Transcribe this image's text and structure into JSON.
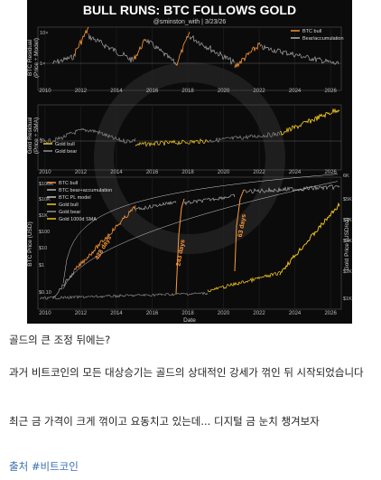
{
  "post": {
    "paragraphs": [
      "골드의 큰 조정 뒤에는?",
      "과거 비트코인의 모든 대상승기는 골드의 상대적인 강세가 꺾인 뒤 시작되었습니다",
      "최근 금 가격이 크게 꺾이고 요동치고 있는데... 디지털 금 눈치 챙겨보자"
    ],
    "source_label": "출처",
    "hashtag": "#비트코인"
  },
  "chart": {
    "title": "BULL RUNS:   BTC FOLLOWS GOLD",
    "subtitle": "@sminston_with  |  3/23/26",
    "panel1": {
      "ylabel": "BTC Residual\n(Price ÷ Model)",
      "yticks": [
        "10×",
        "1×"
      ],
      "legend": [
        "BTC bull",
        "Bear/accumulation"
      ]
    },
    "panel2": {
      "ylabel": "Gold Residual\n(Price ÷ SMA)",
      "yticks": [
        "1×"
      ],
      "legend": [
        "Gold bull",
        "Gold bear"
      ]
    },
    "panel3": {
      "ylabel": "BTC Price (USD)",
      "y2label": "Gold Price (USD/oz)",
      "yticks": [
        "$100K",
        "$10K",
        "$1K",
        "$100",
        "$10",
        "$1",
        "$0.10"
      ],
      "y2ticks": [
        "6K",
        "$5K",
        "$4K",
        "$3K",
        "$2K",
        "$1K"
      ],
      "legend": [
        "BTC bull",
        "BTC bear+accumulation",
        "BTC PL model",
        "Gold bull",
        "Gold bear",
        "Gold 1000d SMA"
      ],
      "annotations": [
        "428 days",
        "243 days",
        "63 days"
      ],
      "xlabel": "Date"
    },
    "xticks": [
      "2010",
      "2012",
      "2014",
      "2016",
      "2018",
      "2020",
      "2022",
      "2024",
      "2026"
    ],
    "colors": {
      "btc_bull": "#ff9a3c",
      "bear": "#bfbfbf",
      "gold_bull": "#ffd21f",
      "gold_bear": "#9a9a9a",
      "model": "#d0d0d0",
      "link": "#3a6fb0"
    }
  }
}
